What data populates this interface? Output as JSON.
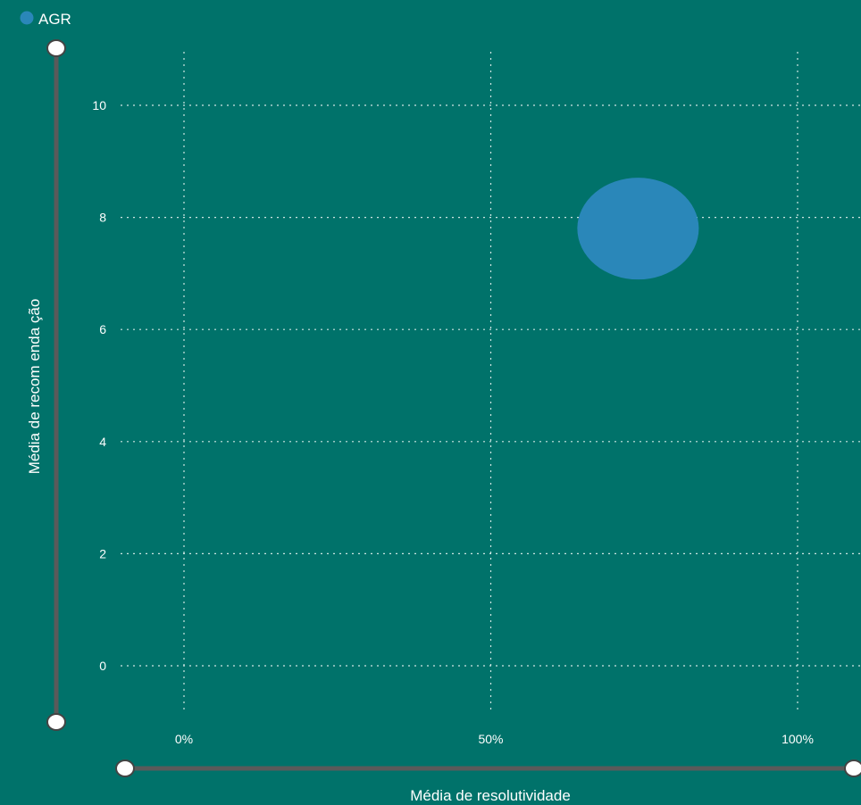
{
  "chart_data": {
    "type": "scatter",
    "legend": {
      "position": "top-left",
      "entries": [
        {
          "label": "AGR",
          "color": "#2A87B9"
        }
      ]
    },
    "series": [
      {
        "name": "AGR",
        "color": "#2A87B9",
        "points": [
          {
            "x": 0.74,
            "y": 7.8
          }
        ]
      }
    ],
    "xlabel": "Média de resolutividade",
    "ylabel": "Média de recom enda ção",
    "x_ticks": [
      0,
      0.5,
      1.0
    ],
    "x_tick_labels": [
      "0%",
      "50%",
      "100%"
    ],
    "y_ticks": [
      0,
      2,
      4,
      6,
      8,
      10
    ],
    "y_tick_labels": [
      "0",
      "2",
      "4",
      "6",
      "8",
      "10"
    ],
    "xlim": [
      -0.1,
      1.1
    ],
    "ylim": [
      -1,
      11
    ],
    "grid": true,
    "background": "#00726A",
    "zoom_sliders": {
      "x": true,
      "y": true
    }
  }
}
